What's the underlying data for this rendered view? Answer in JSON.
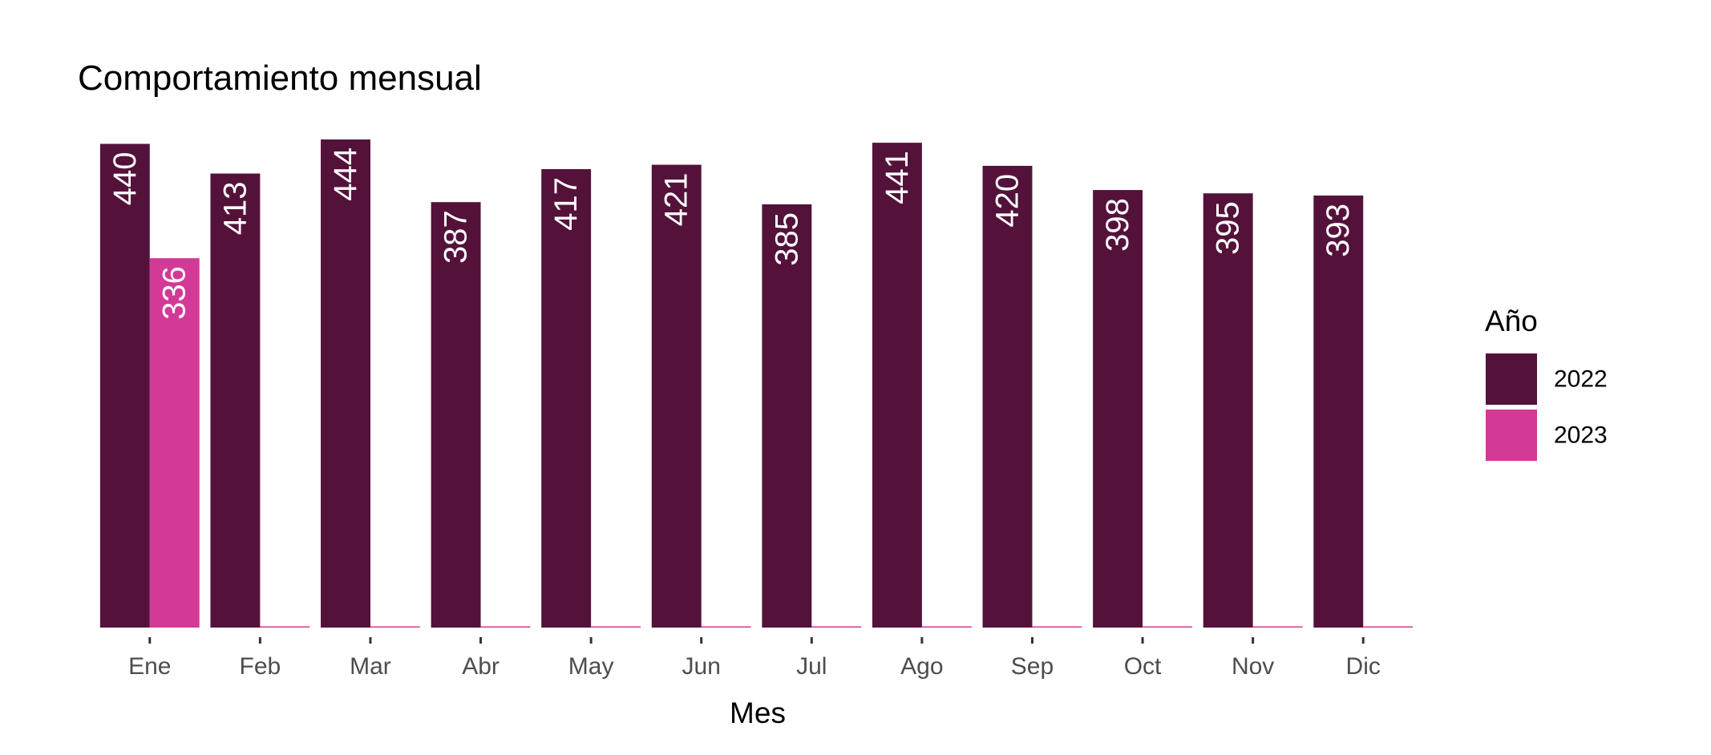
{
  "chart_data": {
    "type": "bar",
    "title": "Comportamiento mensual",
    "xlabel": "Mes",
    "ylabel": "",
    "categories": [
      "Ene",
      "Feb",
      "Mar",
      "Abr",
      "May",
      "Jun",
      "Jul",
      "Ago",
      "Sep",
      "Oct",
      "Nov",
      "Dic"
    ],
    "series": [
      {
        "name": "2022",
        "color": "#54123b",
        "values": [
          440,
          413,
          444,
          387,
          417,
          421,
          385,
          441,
          420,
          398,
          395,
          393
        ]
      },
      {
        "name": "2023",
        "color": "#d33997",
        "values": [
          336,
          0,
          0,
          0,
          0,
          0,
          0,
          0,
          0,
          0,
          0,
          0
        ]
      }
    ],
    "value_labels_shown": [
      [
        "440",
        "413",
        "444",
        "387",
        "417",
        "421",
        "385",
        "441",
        "420",
        "398",
        "395",
        "393"
      ],
      [
        "336",
        "",
        "",
        "",
        "",
        "",
        "",
        "",
        "",
        "",
        "",
        ""
      ]
    ],
    "ylim": [
      0,
      444
    ],
    "grid": false,
    "y_axis_visible": false,
    "legend": {
      "title": "Año",
      "placement": "right",
      "entries": [
        "2022",
        "2023"
      ]
    }
  }
}
